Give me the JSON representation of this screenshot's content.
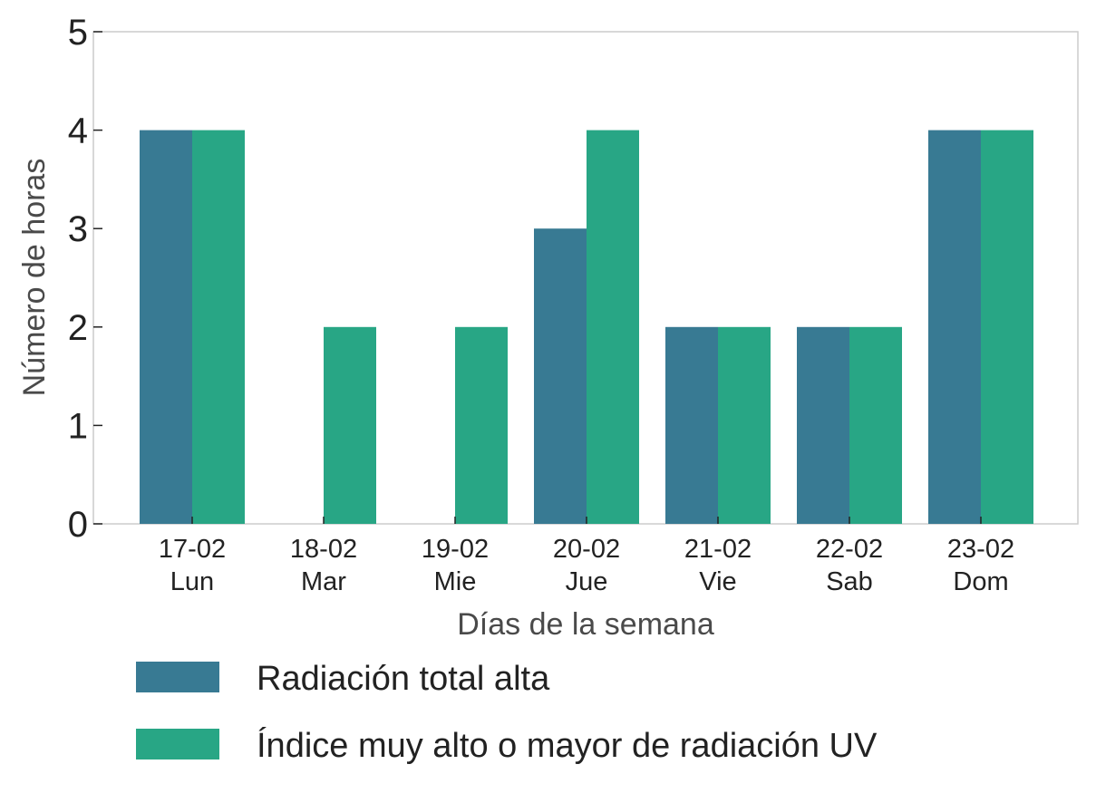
{
  "chart_data": {
    "type": "bar",
    "categories": [
      {
        "date": "17-02",
        "day": "Lun"
      },
      {
        "date": "18-02",
        "day": "Mar"
      },
      {
        "date": "19-02",
        "day": "Mie"
      },
      {
        "date": "20-02",
        "day": "Jue"
      },
      {
        "date": "21-02",
        "day": "Vie"
      },
      {
        "date": "22-02",
        "day": "Sab"
      },
      {
        "date": "23-02",
        "day": "Dom"
      }
    ],
    "series": [
      {
        "name": "Radiación total alta",
        "color": "#387a93",
        "values": [
          4,
          0,
          0,
          3,
          2,
          2,
          4
        ]
      },
      {
        "name": "Índice muy alto o mayor de radiación UV",
        "color": "#28a685",
        "values": [
          4,
          2,
          2,
          4,
          2,
          2,
          4
        ]
      }
    ],
    "xlabel": "Días de la semana",
    "ylabel": "Número de horas",
    "ylim": [
      0,
      5
    ],
    "yticks": [
      "0",
      "1",
      "2",
      "3",
      "4",
      "5"
    ],
    "grid": false,
    "legend_position": "bottom"
  }
}
